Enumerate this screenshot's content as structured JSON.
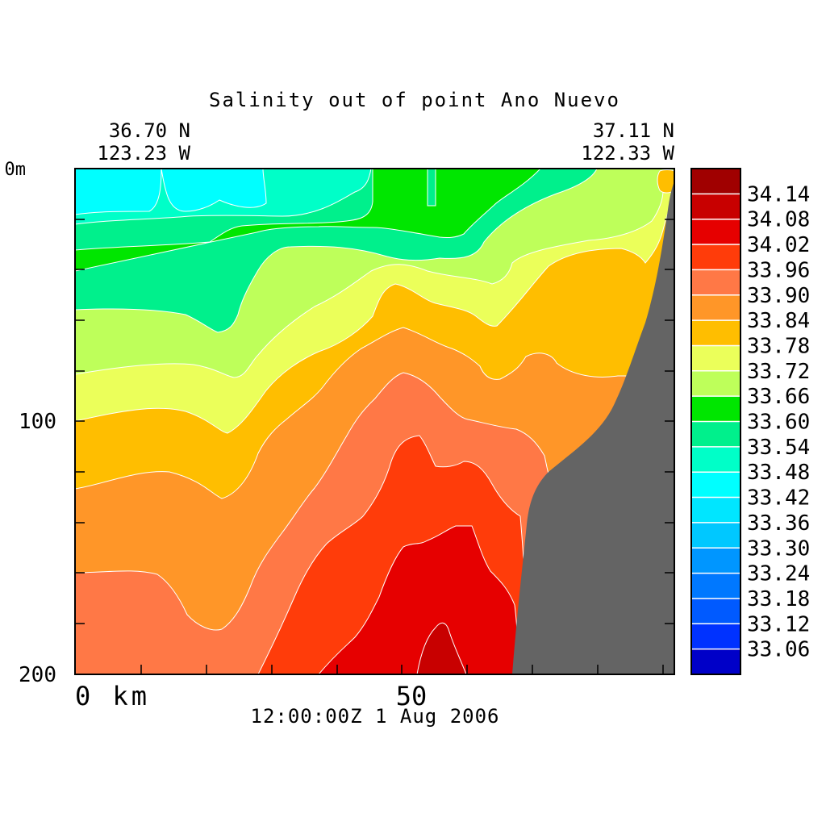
{
  "chart_data": {
    "type": "contour",
    "title": "Salinity out of point Ano Nuevo",
    "corner_left": {
      "lat": "36.70 N",
      "lon": "123.23 W"
    },
    "corner_right": {
      "lat": "37.11 N",
      "lon": "122.33 W"
    },
    "y_ticks": [
      "0m",
      "100",
      "200"
    ],
    "x_ticks": [
      "0 km",
      "50"
    ],
    "timestamp": "12:00:00Z   1 Aug 2006",
    "ylim": [
      200,
      0
    ],
    "xlim": [
      0,
      92
    ],
    "terrain_color": "#646464",
    "colorbar": {
      "levels": [
        "34.14",
        "34.08",
        "34.02",
        "33.96",
        "33.90",
        "33.84",
        "33.78",
        "33.72",
        "33.66",
        "33.60",
        "33.54",
        "33.48",
        "33.42",
        "33.36",
        "33.30",
        "33.24",
        "33.18",
        "33.12",
        "33.06"
      ],
      "colors": [
        "#a00000",
        "#c80000",
        "#e60000",
        "#ff3c0a",
        "#ff7846",
        "#ff9628",
        "#ffbe00",
        "#ebff5a",
        "#beff5a",
        "#00e600",
        "#00f08c",
        "#00ffc8",
        "#00ffff",
        "#00e6ff",
        "#00c8ff",
        "#0096ff",
        "#0078ff",
        "#005aff",
        "#0032ff",
        "#0000c8"
      ]
    }
  }
}
